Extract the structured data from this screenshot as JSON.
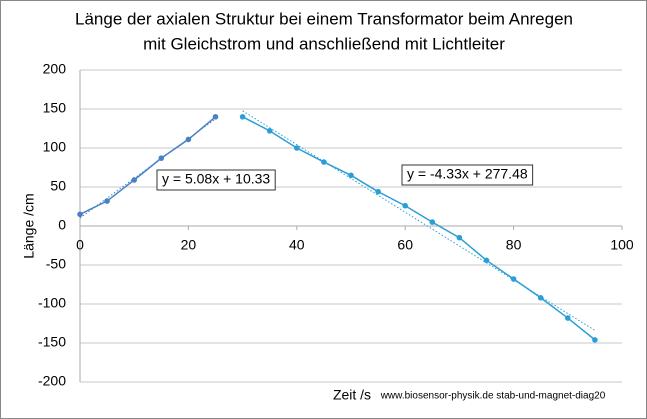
{
  "chart_data": {
    "type": "scatter",
    "title": [
      "Länge der axialen Struktur bei einem Transformator beim Anregen",
      "mit Gleichstrom und anschließend  mit Lichtleiter"
    ],
    "x_label": "Zeit /s",
    "y_label": "Länge /cm",
    "note": "www.biosensor-physik.de  stab-und-magnet-diag20",
    "xlim": [
      0,
      100
    ],
    "xticks": [
      0,
      20,
      40,
      60,
      80,
      100
    ],
    "ylim": [
      -200,
      200
    ],
    "yticks": [
      -200,
      -150,
      -100,
      -50,
      0,
      50,
      100,
      150,
      200
    ],
    "grid": true,
    "series": [
      {
        "color": "#4a80c4",
        "x": [
          0,
          5,
          10,
          15,
          20,
          25
        ],
        "values": [
          15,
          32,
          59,
          87,
          111,
          140
        ]
      },
      {
        "color": "#2a9fd6",
        "x": [
          30,
          35,
          40,
          45,
          50,
          55,
          60,
          65,
          70,
          75,
          80,
          85,
          90,
          95
        ],
        "values": [
          140,
          122,
          100,
          82,
          65,
          44,
          26,
          5,
          -15,
          -44,
          -68,
          -92,
          -118,
          -146
        ]
      }
    ],
    "trendlines": [
      {
        "label": "y = 5.08x + 10.33",
        "slope": 5.08,
        "intercept": 10.33
      },
      {
        "label": "y = -4.33x + 277.48",
        "slope": -4.33,
        "intercept": 277.48
      }
    ]
  }
}
